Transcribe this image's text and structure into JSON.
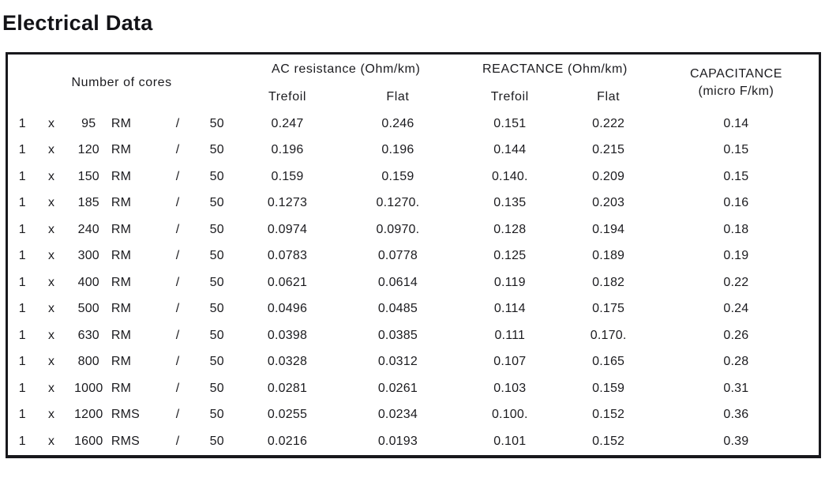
{
  "title": "Electrical Data",
  "table": {
    "headers": {
      "cores": "Number of cores",
      "ac_resistance": "AC resistance (Ohm/km)",
      "reactance": "REACTANCE (Ohm/km)",
      "capacitance_line1": "CAPACITANCE",
      "capacitance_line2": "(micro F/km)"
    },
    "sub_headers": [
      "Trefoil",
      "Flat",
      "Trefoil",
      "Flat"
    ],
    "rows": [
      [
        "1",
        "x",
        "95",
        "RM",
        "/",
        "50",
        "0.247",
        "0.246",
        "0.151",
        "0.222",
        "0.14"
      ],
      [
        "1",
        "x",
        "120",
        "RM",
        "/",
        "50",
        "0.196",
        "0.196",
        "0.144",
        "0.215",
        "0.15"
      ],
      [
        "1",
        "x",
        "150",
        "RM",
        "/",
        "50",
        "0.159",
        "0.159",
        "0.140.",
        "0.209",
        "0.15"
      ],
      [
        "1",
        "x",
        "185",
        "RM",
        "/",
        "50",
        "0.1273",
        "0.1270.",
        "0.135",
        "0.203",
        "0.16"
      ],
      [
        "1",
        "x",
        "240",
        "RM",
        "/",
        "50",
        "0.0974",
        "0.0970.",
        "0.128",
        "0.194",
        "0.18"
      ],
      [
        "1",
        "x",
        "300",
        "RM",
        "/",
        "50",
        "0.0783",
        "0.0778",
        "0.125",
        "0.189",
        "0.19"
      ],
      [
        "1",
        "x",
        "400",
        "RM",
        "/",
        "50",
        "0.0621",
        "0.0614",
        "0.119",
        "0.182",
        "0.22"
      ],
      [
        "1",
        "x",
        "500",
        "RM",
        "/",
        "50",
        "0.0496",
        "0.0485",
        "0.114",
        "0.175",
        "0.24"
      ],
      [
        "1",
        "x",
        "630",
        "RM",
        "/",
        "50",
        "0.0398",
        "0.0385",
        "0.111",
        "0.170.",
        "0.26"
      ],
      [
        "1",
        "x",
        "800",
        "RM",
        "/",
        "50",
        "0.0328",
        "0.0312",
        "0.107",
        "0.165",
        "0.28"
      ],
      [
        "1",
        "x",
        "1000",
        "RM",
        "/",
        "50",
        "0.0281",
        "0.0261",
        "0.103",
        "0.159",
        "0.31"
      ],
      [
        "1",
        "x",
        "1200",
        "RMS",
        "/",
        "50",
        "0.0255",
        "0.0234",
        "0.100.",
        "0.152",
        "0.36"
      ],
      [
        "1",
        "x",
        "1600",
        "RMS",
        "/",
        "50",
        "0.0216",
        "0.0193",
        "0.101",
        "0.152",
        "0.39"
      ]
    ]
  }
}
